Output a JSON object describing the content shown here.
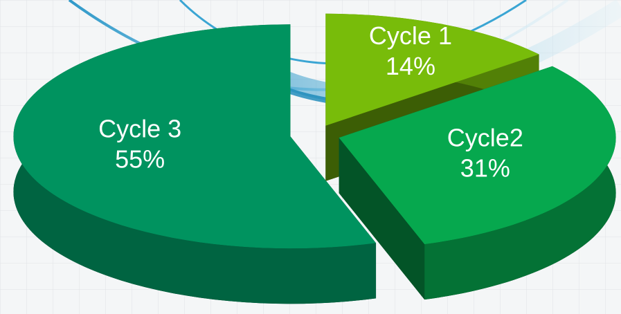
{
  "chart_data": {
    "type": "pie3d",
    "categories": [
      "Cycle 1",
      "Cycle2",
      "Cycle 3"
    ],
    "values": [
      14,
      31,
      55
    ],
    "value_labels": [
      "14%",
      "31%",
      "55%"
    ],
    "colors": [
      "#78bc0a",
      "#06a84e",
      "#00935f"
    ]
  }
}
